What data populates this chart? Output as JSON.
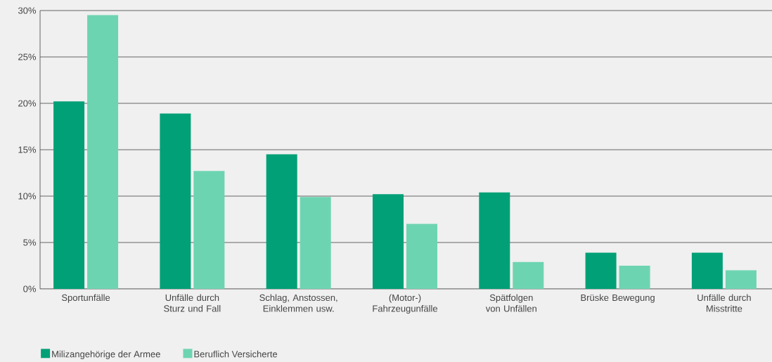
{
  "chart_data": {
    "type": "bar",
    "categories": [
      "Sportunfälle",
      "Unfälle durch Sturz und Fall",
      "Schlag, Anstossen, Einklemmen usw.",
      "(Motor-) Fahrzeugunfälle",
      "Spätfolgen von Unfällen",
      "Brüske Bewegung",
      "Unfälle durch Misstritte"
    ],
    "series": [
      {
        "name": "Milizangehörige der Armee",
        "color": "#02a077",
        "values": [
          20.2,
          18.9,
          14.5,
          10.2,
          10.4,
          3.9,
          3.9
        ]
      },
      {
        "name": "Beruflich Versicherte",
        "color": "#6dd4b1",
        "values": [
          29.5,
          12.7,
          9.9,
          7.0,
          2.9,
          2.5,
          2.0
        ]
      }
    ],
    "ylim": [
      0,
      30
    ],
    "yticks": [
      {
        "value": 0,
        "label": "0%"
      },
      {
        "value": 5,
        "label": "5%"
      },
      {
        "value": 10,
        "label": "10%"
      },
      {
        "value": 15,
        "label": "15%"
      },
      {
        "value": 20,
        "label": "20%"
      },
      {
        "value": 25,
        "label": "25%"
      },
      {
        "value": 30,
        "label": "30%"
      }
    ],
    "grid": "y",
    "legend": "bottom left"
  }
}
